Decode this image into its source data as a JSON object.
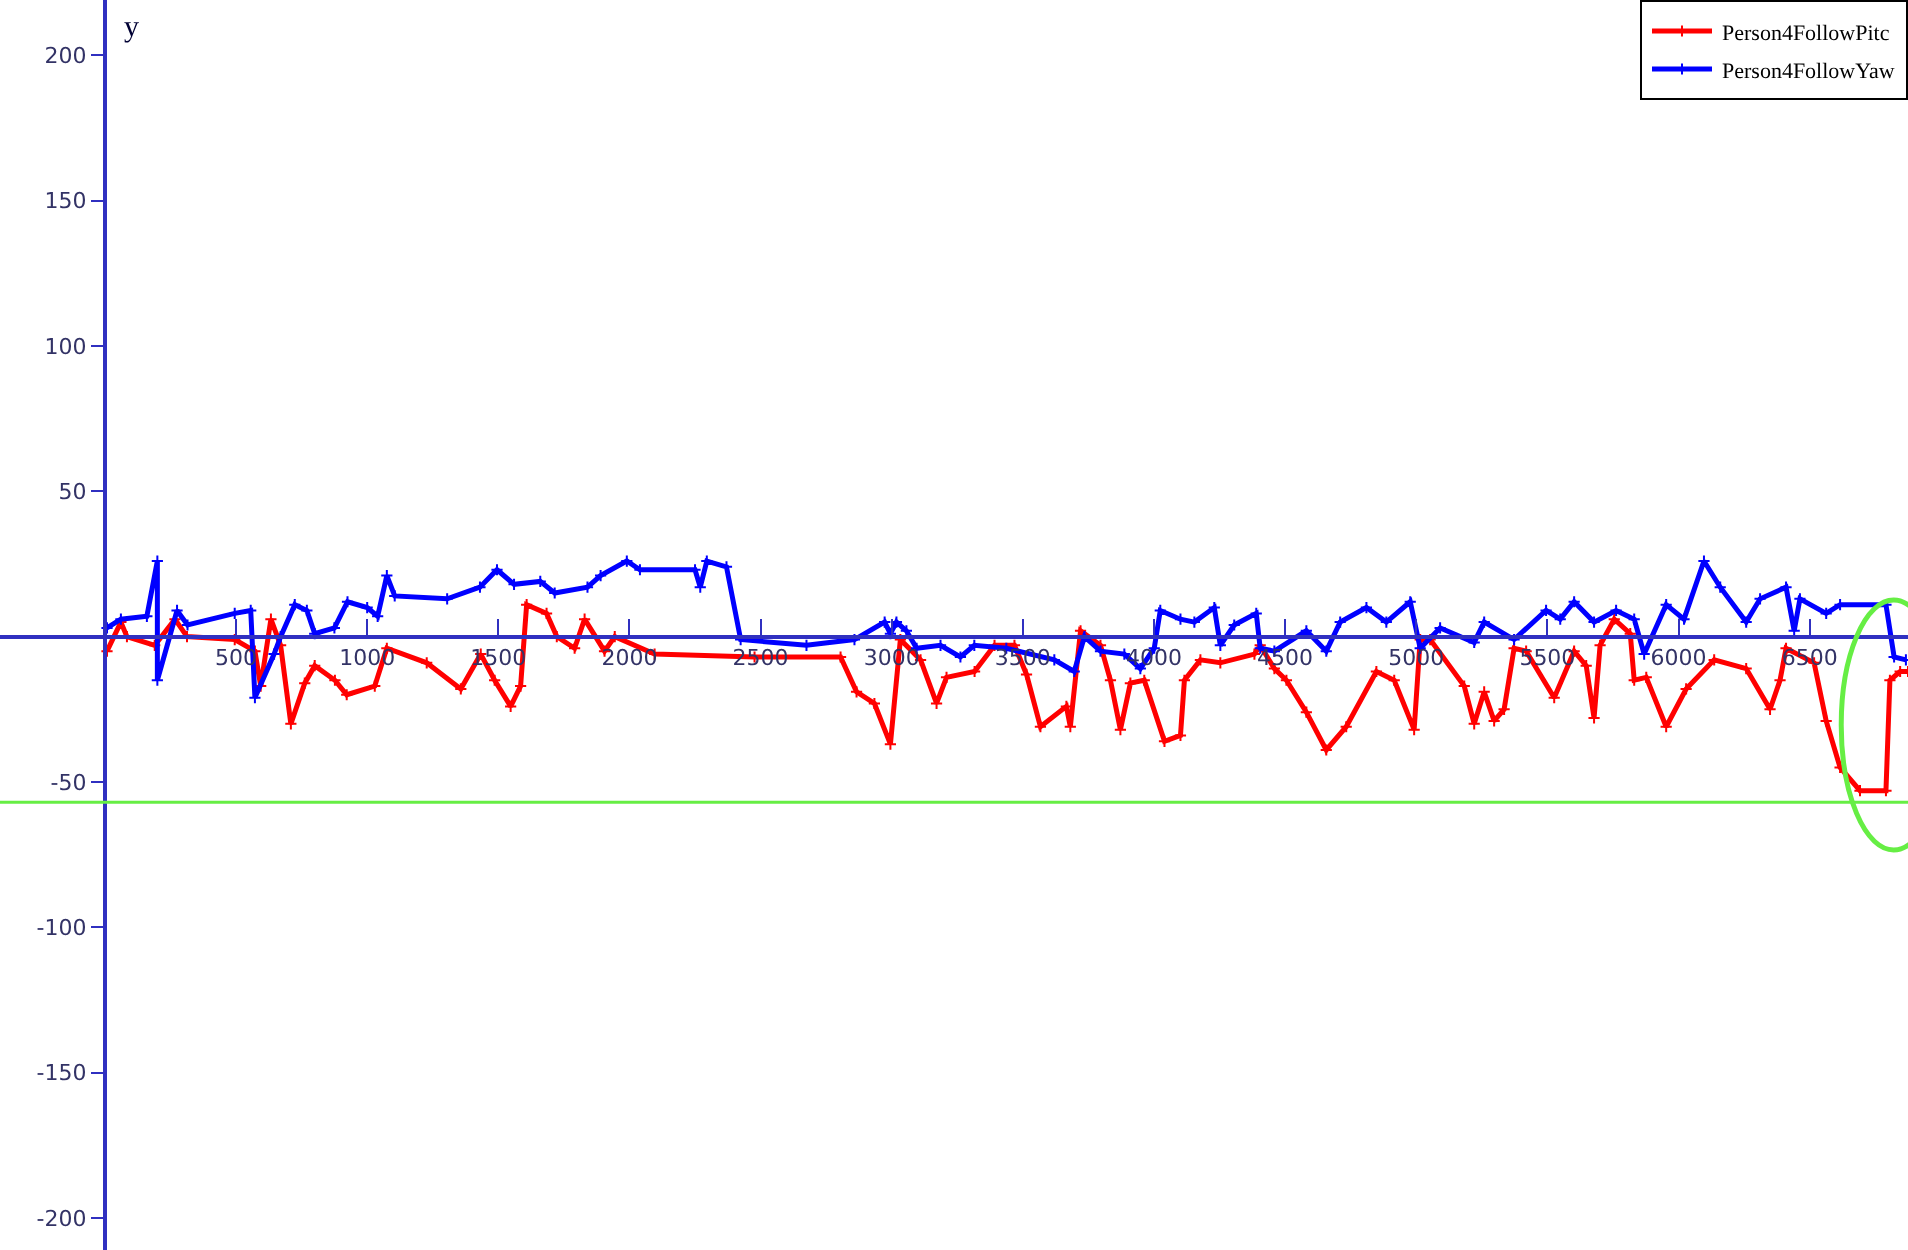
{
  "chart_data": {
    "type": "line",
    "ylabel": "y",
    "xlim": [
      -400,
      6875
    ],
    "ylim": [
      -211,
      219
    ],
    "xticks": [
      500,
      1000,
      1500,
      2000,
      2500,
      3000,
      3500,
      4000,
      4500,
      5000,
      5500,
      6000,
      6500
    ],
    "yticks": [
      -200,
      -150,
      -100,
      -50,
      50,
      100,
      150,
      200
    ],
    "marker": "cross",
    "legend": "top right",
    "ref_lines": [
      {
        "axis": "y",
        "value": -57,
        "color": "#66ee44"
      }
    ],
    "series": [
      {
        "name": "Person4FollowPitc",
        "color": "#ff0000",
        "x": [
          8,
          61,
          84,
          190,
          267,
          313,
          495,
          572,
          594,
          633,
          670,
          709,
          762,
          800,
          877,
          922,
          1029,
          1075,
          1227,
          1357,
          1433,
          1486,
          1547,
          1585,
          1608,
          1684,
          1723,
          1791,
          1829,
          1905,
          1944,
          2096,
          2477,
          2805,
          2866,
          2934,
          2995,
          3033,
          3110,
          3171,
          3209,
          3316,
          3392,
          3468,
          3514,
          3567,
          3666,
          3681,
          3720,
          3796,
          3834,
          3872,
          3910,
          3963,
          4040,
          4101,
          4116,
          4177,
          4253,
          4383,
          4405,
          4459,
          4505,
          4581,
          4657,
          4733,
          4848,
          4916,
          4992,
          5015,
          5053,
          5183,
          5221,
          5259,
          5297,
          5335,
          5373,
          5419,
          5526,
          5602,
          5648,
          5678,
          5701,
          5755,
          5816,
          5831,
          5877,
          5953,
          6029,
          6136,
          6258,
          6349,
          6387,
          6410,
          6517,
          6563,
          6616,
          6692,
          6791,
          6806,
          6845,
          6875
        ],
        "values": [
          -5,
          5,
          0,
          -3,
          6,
          0,
          -1,
          -5,
          -17,
          6,
          -3,
          -30,
          -16,
          -10,
          -15,
          -20,
          -17,
          -4,
          -9,
          -18,
          -6,
          -15,
          -24,
          -17,
          11,
          8,
          0,
          -4,
          6,
          -5,
          0,
          -6,
          -7,
          -7,
          -19,
          -23,
          -37,
          -1,
          -8,
          -23,
          -14,
          -12,
          -3,
          -3,
          -13,
          -31,
          -24,
          -31,
          2,
          -3,
          -15,
          -32,
          -16,
          -15,
          -36,
          -34,
          -15,
          -8,
          -9,
          -6,
          -3,
          -11,
          -15,
          -26,
          -39,
          -31,
          -12,
          -15,
          -32,
          -1,
          -1,
          -17,
          -30,
          -19,
          -29,
          -25,
          -4,
          -5,
          -21,
          -5,
          -10,
          -28,
          -3,
          6,
          1,
          -15,
          -14,
          -31,
          -18,
          -8,
          -11,
          -25,
          -15,
          -4,
          -9,
          -29,
          -45,
          -53,
          -53,
          -15,
          -12,
          -12
        ]
      },
      {
        "name": "Person4FollowYaw",
        "color": "#0000ff",
        "x": [
          8,
          61,
          160,
          200,
          200,
          275,
          315,
          495,
          556,
          572,
          645,
          670,
          724,
          770,
          800,
          875,
          925,
          1000,
          1040,
          1075,
          1105,
          1305,
          1430,
          1495,
          1560,
          1660,
          1715,
          1840,
          1890,
          1990,
          2040,
          2250,
          2270,
          2295,
          2370,
          2424,
          2675,
          2858,
          2973,
          2995,
          3018,
          3056,
          3095,
          3186,
          3262,
          3315,
          3437,
          3620,
          3696,
          3735,
          3796,
          3887,
          3948,
          4001,
          4024,
          4101,
          4154,
          4230,
          4253,
          4306,
          4390,
          4405,
          4459,
          4581,
          4657,
          4710,
          4810,
          4886,
          4977,
          5015,
          5091,
          5221,
          5259,
          5373,
          5495,
          5549,
          5602,
          5678,
          5762,
          5831,
          5869,
          5953,
          6021,
          6097,
          6159,
          6258,
          6311,
          6410,
          6441,
          6463,
          6563,
          6616,
          6791,
          6822,
          6867
        ],
        "values": [
          3,
          6,
          7,
          26,
          -15,
          9,
          4,
          8,
          9,
          -21,
          -6,
          0,
          11,
          9,
          1,
          3,
          12,
          10,
          7,
          21,
          14,
          13,
          17,
          23,
          18,
          19,
          15,
          17,
          21,
          26,
          23,
          23,
          17,
          26,
          24,
          -1,
          -3,
          -1,
          5,
          1,
          5,
          2,
          -4,
          -3,
          -7,
          -3,
          -4,
          -8,
          -12,
          0,
          -5,
          -6,
          -11,
          -4,
          9,
          6,
          5,
          10,
          -3,
          4,
          8,
          -4,
          -5,
          2,
          -5,
          5,
          10,
          5,
          12,
          -4,
          3,
          -2,
          5,
          -1,
          9,
          6,
          12,
          5,
          9,
          6,
          -6,
          11,
          6,
          26,
          17,
          5,
          13,
          17,
          2,
          13,
          8,
          11,
          11,
          -7,
          -8
        ]
      }
    ]
  }
}
